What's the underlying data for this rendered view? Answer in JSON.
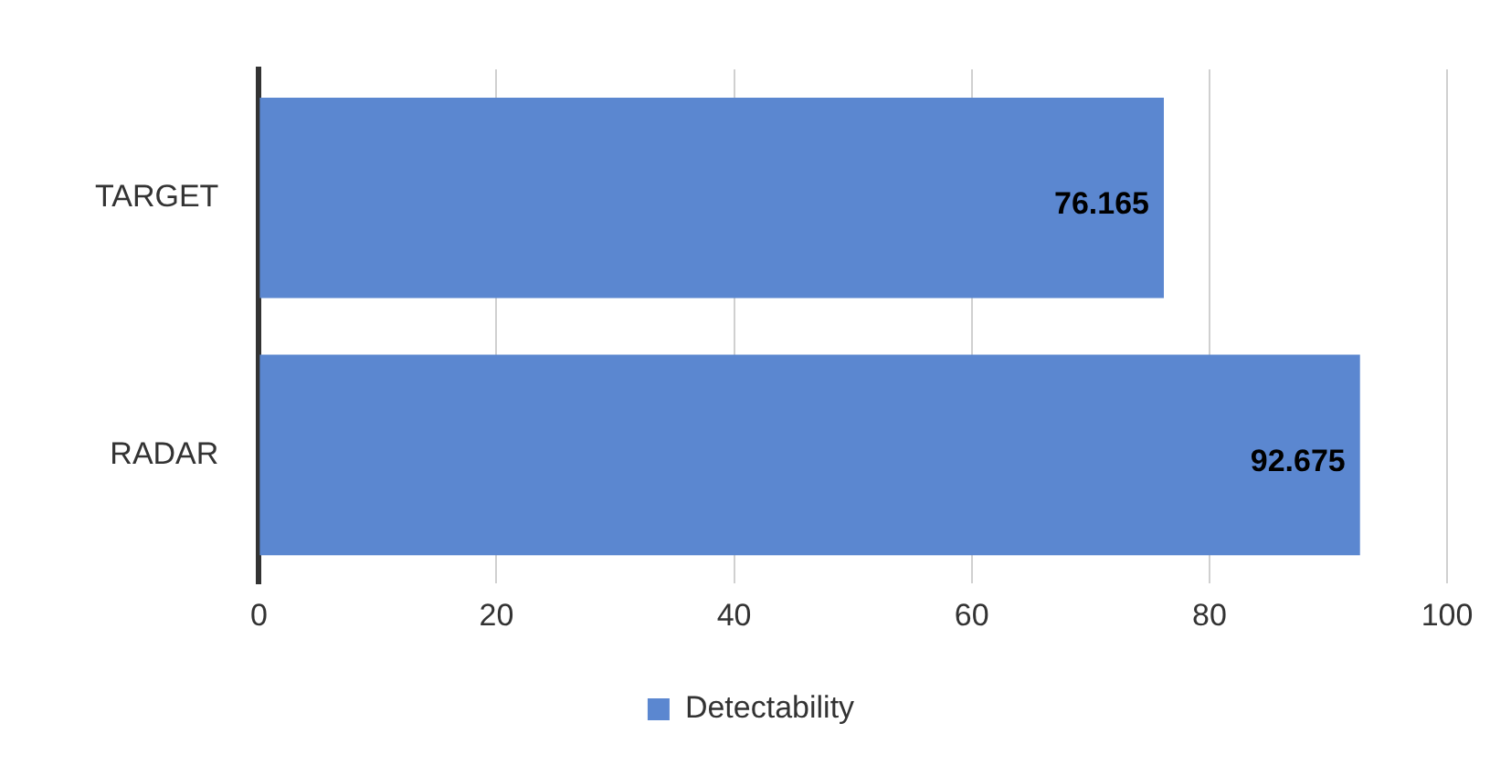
{
  "chart_data": {
    "type": "bar",
    "orientation": "horizontal",
    "categories": [
      "TARGET",
      "RADAR"
    ],
    "series": [
      {
        "name": "Detectability",
        "color": "#5b87d0",
        "values": [
          76.165,
          92.675
        ]
      }
    ],
    "xlim": [
      0,
      100
    ],
    "xticks": [
      0,
      20,
      40,
      60,
      80,
      100
    ],
    "grid": "x",
    "legend": "bottom",
    "data_labels": true
  }
}
